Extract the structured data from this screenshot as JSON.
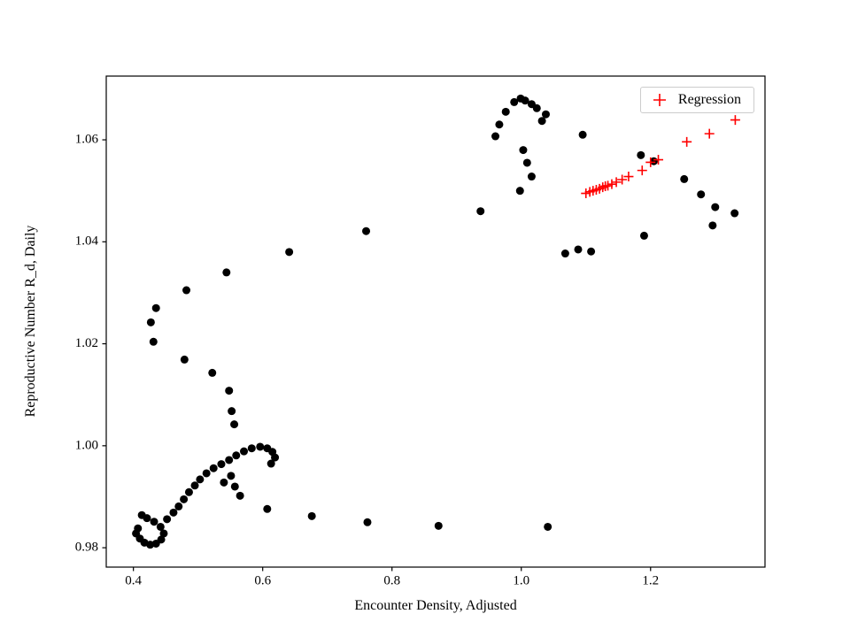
{
  "figure": {
    "background": "#ffffff",
    "frame_color": "#000000",
    "text_color": "#000000"
  },
  "chart_data": {
    "type": "scatter",
    "title": "",
    "xlabel": "Encounter Density, Adjusted",
    "ylabel": "Reproductive Number R_d, Daily",
    "xlim": [
      0.358,
      1.377
    ],
    "ylim": [
      0.9762,
      1.0725
    ],
    "grid": false,
    "xticks": {
      "values": [
        0.4,
        0.6,
        0.8,
        1.0,
        1.2
      ],
      "labels": [
        "0.4",
        "0.6",
        "0.8",
        "1.0",
        "1.2"
      ]
    },
    "yticks": {
      "values": [
        0.98,
        1.0,
        1.02,
        1.04,
        1.06
      ],
      "labels": [
        "0.98",
        "1.00",
        "1.02",
        "1.04",
        "1.06"
      ]
    },
    "legend": {
      "position": "upper right",
      "entries": [
        {
          "label": "Regression",
          "marker": "plus",
          "color": "#ff0000"
        }
      ]
    },
    "series": [
      {
        "name": "",
        "marker": "circle",
        "color": "#000000",
        "size": 4.5,
        "points": [
          [
            0.407,
            0.9838
          ],
          [
            0.404,
            0.9828
          ],
          [
            0.41,
            0.9818
          ],
          [
            0.417,
            0.981
          ],
          [
            0.426,
            0.9806
          ],
          [
            0.435,
            0.9808
          ],
          [
            0.443,
            0.9816
          ],
          [
            0.447,
            0.9828
          ],
          [
            0.442,
            0.9841
          ],
          [
            0.432,
            0.9851
          ],
          [
            0.421,
            0.9858
          ],
          [
            0.413,
            0.9864
          ],
          [
            0.452,
            0.9856
          ],
          [
            0.462,
            0.9869
          ],
          [
            0.47,
            0.9881
          ],
          [
            0.478,
            0.9895
          ],
          [
            0.486,
            0.9909
          ],
          [
            0.495,
            0.9922
          ],
          [
            0.503,
            0.9934
          ],
          [
            0.513,
            0.9946
          ],
          [
            0.524,
            0.9956
          ],
          [
            0.536,
            0.9964
          ],
          [
            0.548,
            0.9972
          ],
          [
            0.559,
            0.9981
          ],
          [
            0.571,
            0.9989
          ],
          [
            0.583,
            0.9995
          ],
          [
            0.596,
            0.9998
          ],
          [
            0.607,
            0.9995
          ],
          [
            0.615,
            0.9988
          ],
          [
            0.619,
            0.9977
          ],
          [
            0.613,
            0.9965
          ],
          [
            0.54,
            0.9928
          ],
          [
            0.551,
            0.9941
          ],
          [
            0.557,
            0.992
          ],
          [
            0.565,
            0.9902
          ],
          [
            0.607,
            0.9876
          ],
          [
            0.676,
            0.9862
          ],
          [
            0.762,
            0.985
          ],
          [
            0.872,
            0.9843
          ],
          [
            1.041,
            0.9841
          ],
          [
            0.556,
            1.0042
          ],
          [
            0.552,
            1.0068
          ],
          [
            0.548,
            1.0108
          ],
          [
            0.522,
            1.0143
          ],
          [
            0.479,
            1.0169
          ],
          [
            0.431,
            1.0204
          ],
          [
            0.427,
            1.0242
          ],
          [
            0.435,
            1.027
          ],
          [
            0.482,
            1.0305
          ],
          [
            0.544,
            1.034
          ],
          [
            0.641,
            1.038
          ],
          [
            0.76,
            1.0421
          ],
          [
            0.937,
            1.046
          ],
          [
            0.96,
            1.0607
          ],
          [
            0.966,
            1.063
          ],
          [
            0.976,
            1.0655
          ],
          [
            0.989,
            1.0674
          ],
          [
            0.999,
            1.0681
          ],
          [
            1.006,
            1.0677
          ],
          [
            1.016,
            1.067
          ],
          [
            1.024,
            1.0662
          ],
          [
            1.038,
            1.065
          ],
          [
            1.032,
            1.0637
          ],
          [
            1.003,
            1.058
          ],
          [
            1.009,
            1.0555
          ],
          [
            1.016,
            1.0528
          ],
          [
            0.998,
            1.05
          ],
          [
            1.095,
            1.061
          ],
          [
            1.068,
            1.0377
          ],
          [
            1.088,
            1.0385
          ],
          [
            1.108,
            1.0381
          ],
          [
            1.19,
            1.0412
          ],
          [
            1.185,
            1.057
          ],
          [
            1.205,
            1.0558
          ],
          [
            1.252,
            1.0523
          ],
          [
            1.278,
            1.0493
          ],
          [
            1.3,
            1.0468
          ],
          [
            1.296,
            1.0432
          ],
          [
            1.33,
            1.0456
          ]
        ]
      },
      {
        "name": "Regression",
        "marker": "plus",
        "color": "#ff0000",
        "size": 5.5,
        "points": [
          [
            1.1,
            1.0495
          ],
          [
            1.106,
            1.0498
          ],
          [
            1.111,
            1.05
          ],
          [
            1.116,
            1.0502
          ],
          [
            1.121,
            1.0504
          ],
          [
            1.126,
            1.0507
          ],
          [
            1.13,
            1.0509
          ],
          [
            1.134,
            1.051
          ],
          [
            1.14,
            1.0513
          ],
          [
            1.147,
            1.0517
          ],
          [
            1.156,
            1.0522
          ],
          [
            1.166,
            1.0528
          ],
          [
            1.187,
            1.054
          ],
          [
            1.2,
            1.0556
          ],
          [
            1.212,
            1.0561
          ],
          [
            1.256,
            1.0596
          ],
          [
            1.291,
            1.0612
          ],
          [
            1.331,
            1.0639
          ]
        ]
      }
    ]
  }
}
